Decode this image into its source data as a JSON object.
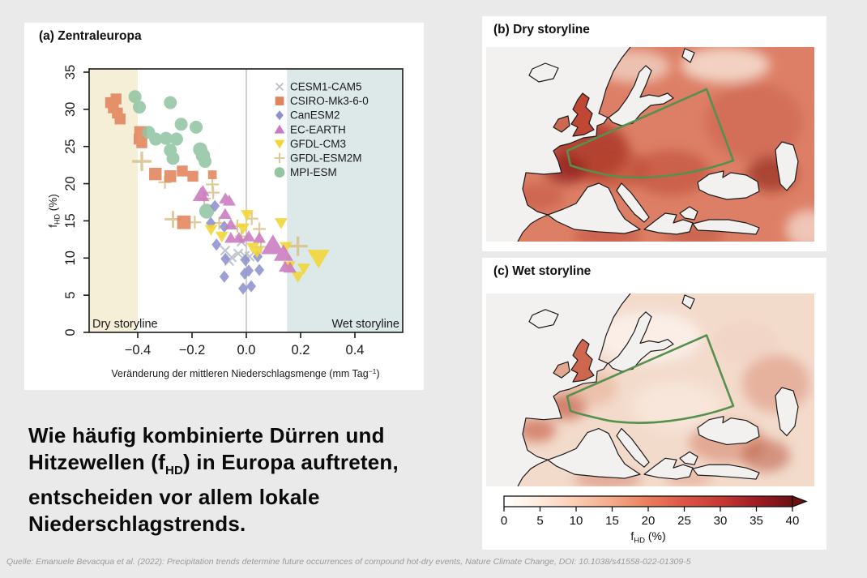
{
  "colors": {
    "background": "#eaeaea",
    "panel_bg": "#ffffff",
    "dry_region": "#f6efd7",
    "wet_region": "#dde9e9",
    "zero_line": "#b5b5b5",
    "axis": "#1a1a1a",
    "region_outline_green": "#55904f",
    "ocean_white": "#f2f1ef",
    "coastline": "#1a1a1a"
  },
  "panel_a": {
    "title": "(a) Zentraleuropa",
    "xlabel_pre": "Veränderung der mittleren Niederschlagsmenge (mm Tag",
    "xlabel_sup": "−1",
    "xlabel_post": ")",
    "ylabel_f": "f",
    "ylabel_sub": "HD",
    "ylabel_unit": " (%)",
    "dry_label": "Dry storyline",
    "wet_label": "Wet storyline",
    "x_tick_labels": [
      "−0.4",
      "−0.2",
      "0.0",
      "0.2",
      "0.4"
    ],
    "y_tick_labels": [
      "0",
      "5",
      "10",
      "15",
      "20",
      "25",
      "30",
      "35"
    ]
  },
  "panel_b": {
    "title": "(b) Dry storyline"
  },
  "panel_c": {
    "title": "(c) Wet storyline"
  },
  "colorbar": {
    "tick_labels": [
      "0",
      "5",
      "10",
      "15",
      "20",
      "25",
      "30",
      "35",
      "40"
    ],
    "tick_values": [
      0,
      5,
      10,
      15,
      20,
      25,
      30,
      35,
      40
    ],
    "label_f": "f",
    "label_sub": "HD",
    "label_unit": " (%)",
    "colors": [
      "#ffffff",
      "#fdeadd",
      "#fbccb2",
      "#f5a988",
      "#eb7d5c",
      "#dc5545",
      "#c63a33",
      "#9e1c22",
      "#6d1012"
    ]
  },
  "caption": {
    "line1": "Wie häufig kombinierte Dürren und",
    "line2_pre": "Hitzewellen (f",
    "line2_sub": "HD",
    "line2_post": ") in Europa auftreten,",
    "line3": "entscheiden vor allem lokale",
    "line4": "Niederschlagstrends."
  },
  "source": "Quelle: Emanuele Bevacqua et al. (2022): Precipitation trends determine future occurrences of compound hot-dry events, Nature Climate Change, DOI: 10.1038/s41558-022-01309-5",
  "chart_data": [
    {
      "type": "scatter",
      "title": "(a) Zentraleuropa",
      "xlabel": "Veränderung der mittleren Niederschlagsmenge (mm Tag−1)",
      "ylabel": "fHD (%)",
      "xlim": [
        -0.58,
        0.58
      ],
      "ylim": [
        0,
        35
      ],
      "x_ticks": [
        -0.4,
        -0.2,
        0.0,
        0.2,
        0.4
      ],
      "y_ticks": [
        0,
        5,
        10,
        15,
        20,
        25,
        30,
        35
      ],
      "dry_region_x_max": -0.4,
      "wet_region_x_min": 0.15,
      "legend_position": "top-right-inside",
      "series": [
        {
          "name": "CESM1-CAM5",
          "marker": "x",
          "color": "#b9bfc5",
          "points": [
            [
              -0.078,
              11.0,
              1
            ],
            [
              -0.054,
              10.1,
              1
            ],
            [
              -0.03,
              10.6,
              1
            ],
            [
              -0.006,
              10.3,
              1
            ],
            [
              -0.063,
              9.6,
              1
            ],
            [
              0.012,
              10.2,
              1
            ],
            [
              -0.018,
              12.2,
              1
            ]
          ]
        },
        {
          "name": "CSIRO-Mk3-6-0",
          "marker": "square",
          "color": "#e2855c",
          "points": [
            [
              -0.5,
              30.9,
              1
            ],
            [
              -0.49,
              30.2,
              1
            ],
            [
              -0.48,
              31.4,
              1
            ],
            [
              -0.475,
              29.5,
              1
            ],
            [
              -0.465,
              28.7,
              1
            ],
            [
              -0.39,
              26.9,
              1.15
            ],
            [
              -0.395,
              26.0,
              1
            ],
            [
              -0.385,
              25.5,
              1
            ],
            [
              -0.335,
              21.3,
              1.15
            ],
            [
              -0.28,
              21.0,
              1.1
            ],
            [
              -0.236,
              21.7,
              1
            ],
            [
              -0.197,
              21.0,
              1
            ],
            [
              -0.125,
              21.2,
              0.8
            ],
            [
              -0.23,
              14.8,
              1.25
            ]
          ]
        },
        {
          "name": "CanESM2",
          "marker": "diamond",
          "color": "#8e92cc",
          "points": [
            [
              -0.116,
              17.0,
              1
            ],
            [
              -0.131,
              14.7,
              1
            ],
            [
              -0.081,
              14.2,
              1
            ],
            [
              -0.11,
              11.8,
              1
            ],
            [
              -0.077,
              9.9,
              1
            ],
            [
              -0.003,
              9.7,
              1
            ],
            [
              0.042,
              10.2,
              1
            ],
            [
              -0.006,
              7.9,
              1
            ],
            [
              0.048,
              8.4,
              1
            ],
            [
              -0.081,
              7.5,
              1
            ],
            [
              0.009,
              8.3,
              1
            ],
            [
              -0.012,
              5.9,
              1
            ],
            [
              0.018,
              6.2,
              1
            ]
          ]
        },
        {
          "name": "EC-EARTH",
          "marker": "triangle-up",
          "color": "#cb7ac1",
          "points": [
            [
              -0.167,
              18.5,
              1.3
            ],
            [
              -0.16,
              19.0,
              1
            ],
            [
              -0.077,
              18.0,
              1
            ],
            [
              -0.063,
              17.7,
              1
            ],
            [
              -0.078,
              15.9,
              1
            ],
            [
              -0.057,
              14.5,
              1
            ],
            [
              -0.057,
              12.7,
              1
            ],
            [
              -0.027,
              12.7,
              1
            ],
            [
              0.009,
              12.9,
              1
            ],
            [
              0.048,
              12.7,
              1
            ],
            [
              0.098,
              11.7,
              1.8
            ],
            [
              0.137,
              10.6,
              1.5
            ],
            [
              0.143,
              8.8,
              1
            ],
            [
              0.161,
              8.7,
              1
            ]
          ]
        },
        {
          "name": "GFDL-CM3",
          "marker": "triangle-down",
          "color": "#f2d635",
          "points": [
            [
              -0.13,
              13.8,
              1
            ],
            [
              -0.09,
              12.9,
              1
            ],
            [
              0.003,
              15.8,
              1
            ],
            [
              -0.012,
              14.0,
              1
            ],
            [
              0.024,
              11.4,
              1
            ],
            [
              0.039,
              10.8,
              1
            ],
            [
              0.128,
              14.7,
              1
            ],
            [
              0.146,
              11.5,
              1
            ],
            [
              0.158,
              8.9,
              1
            ],
            [
              0.19,
              7.5,
              1
            ],
            [
              0.212,
              8.6,
              1
            ],
            [
              0.266,
              10.0,
              1.7
            ]
          ]
        },
        {
          "name": "GFDL-ESM2M",
          "marker": "plus",
          "color": "#d9c28c",
          "points": [
            [
              -0.385,
              23.0,
              1.5
            ],
            [
              -0.3,
              20.2,
              1
            ],
            [
              -0.27,
              15.2,
              1.3
            ],
            [
              -0.19,
              14.8,
              1
            ],
            [
              -0.125,
              19.9,
              1
            ],
            [
              -0.122,
              18.8,
              1
            ],
            [
              -0.155,
              18.0,
              1
            ],
            [
              -0.1,
              14.7,
              1
            ],
            [
              -0.033,
              14.3,
              1
            ],
            [
              0.048,
              13.9,
              1
            ],
            [
              -0.018,
              12.9,
              1
            ],
            [
              0.054,
              11.5,
              1
            ],
            [
              0.19,
              11.6,
              1.5
            ],
            [
              0.02,
              15.3,
              1
            ]
          ]
        },
        {
          "name": "MPI-ESM",
          "marker": "circle",
          "color": "#92c5a3",
          "points": [
            [
              -0.41,
              31.7,
              1
            ],
            [
              -0.394,
              30.3,
              1
            ],
            [
              -0.28,
              30.9,
              1
            ],
            [
              -0.24,
              28.0,
              1
            ],
            [
              -0.185,
              27.6,
              1
            ],
            [
              -0.36,
              26.9,
              1
            ],
            [
              -0.334,
              26.0,
              1
            ],
            [
              -0.296,
              26.1,
              1
            ],
            [
              -0.257,
              26.0,
              1
            ],
            [
              -0.28,
              24.5,
              1
            ],
            [
              -0.27,
              23.4,
              1
            ],
            [
              -0.17,
              24.6,
              1.1
            ],
            [
              -0.16,
              23.8,
              1.1
            ],
            [
              -0.152,
              23.0,
              1
            ],
            [
              -0.146,
              16.3,
              1.15
            ]
          ]
        }
      ]
    },
    {
      "type": "heatmap",
      "title": "(b) Dry storyline",
      "description": "Map of Europe showing fHD (%) under the dry storyline; high values (20-40%) over central/western Europe, Balkans, Caucasus; lighter over Scandinavia and far north-east. Green outline marks the Zentraleuropa region.",
      "value_range": [
        0,
        40
      ],
      "units": "fHD (%)"
    },
    {
      "type": "heatmap",
      "title": "(c) Wet storyline",
      "description": "Map of Europe showing fHD (%) under the wet storyline; mostly low values (0-15%) with moderate values along the French/Iberian Atlantic coast and south-eastern Europe. Green outline marks the Zentraleuropa region.",
      "value_range": [
        0,
        40
      ],
      "units": "fHD (%)"
    }
  ],
  "maps": {
    "b": {
      "base": "#dd7f66",
      "uk": "#bf4734",
      "ie": "#cc6950",
      "blobs": [
        [
          128,
          128,
          48,
          36,
          "#a93226",
          0.8
        ],
        [
          98,
          152,
          26,
          18,
          "#8a1f18",
          0.65
        ],
        [
          160,
          150,
          40,
          25,
          "#b8402e",
          0.5
        ],
        [
          228,
          155,
          48,
          28,
          "#bb4834",
          0.55
        ],
        [
          330,
          92,
          60,
          48,
          "#cd6450",
          0.6
        ],
        [
          352,
          156,
          30,
          22,
          "#8a1f18",
          0.6
        ],
        [
          64,
          185,
          32,
          17,
          "#c25440",
          0.55
        ],
        [
          150,
          233,
          42,
          14,
          "#bf4c38",
          0.55
        ],
        [
          258,
          232,
          36,
          12,
          "#b84a36",
          0.5
        ],
        [
          295,
          22,
          55,
          22,
          "#f4dacc",
          0.9
        ],
        [
          182,
          24,
          45,
          20,
          "#f0cdbd",
          0.85
        ],
        [
          398,
          225,
          28,
          24,
          "#f6ded2",
          0.75
        ]
      ]
    },
    "c": {
      "base": "#f3dbcc",
      "uk": "#cd6750",
      "ie": "#e2a88f",
      "blobs": [
        [
          100,
          140,
          24,
          17,
          "#bd432c",
          0.6
        ],
        [
          62,
          170,
          24,
          15,
          "#bd432c",
          0.55
        ],
        [
          130,
          118,
          32,
          22,
          "#e5a78e",
          0.5
        ],
        [
          298,
          185,
          48,
          26,
          "#d57f64",
          0.55
        ],
        [
          358,
          112,
          42,
          36,
          "#da8a70",
          0.5
        ],
        [
          345,
          202,
          30,
          20,
          "#b44a32",
          0.5
        ],
        [
          150,
          232,
          42,
          12,
          "#d5826a",
          0.55
        ],
        [
          250,
          230,
          30,
          10,
          "#dc9078",
          0.45
        ],
        [
          200,
          55,
          65,
          32,
          "#fbf1ea",
          0.9
        ],
        [
          235,
          140,
          55,
          30,
          "#f8e8dc",
          0.8
        ],
        [
          320,
          60,
          40,
          25,
          "#f0cfc0",
          0.5
        ]
      ]
    }
  }
}
